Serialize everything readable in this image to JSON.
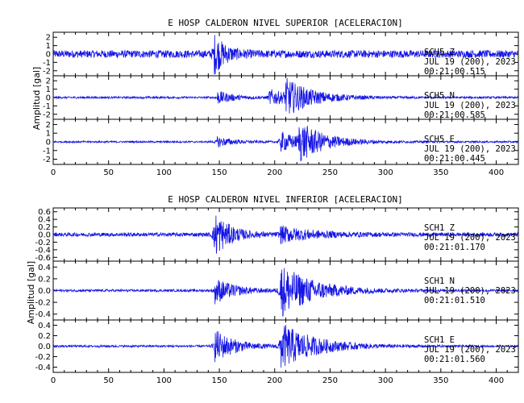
{
  "chart_data": [
    {
      "type": "line",
      "title": "E HOSP CALDERON NIVEL SUPERIOR [ACELERACION]",
      "ylabel": "Amplitud [gal]",
      "xlim": [
        0,
        420
      ],
      "xticks": [
        "0",
        "50",
        "100",
        "150",
        "200",
        "250",
        "300",
        "350",
        "400"
      ],
      "channels": [
        {
          "station": "SCH5",
          "component": "Z",
          "date": "JUL 19 (200), 2023",
          "time": "00:21:00.515",
          "ylim": [
            -2.6,
            2.6
          ],
          "yticks": [
            "-2",
            "-1",
            "0",
            "1",
            "2"
          ],
          "noise_level": 0.45,
          "bursts": [
            {
              "t": 145,
              "amp": 2.3,
              "decay": 10
            }
          ]
        },
        {
          "station": "SCH5",
          "component": "N",
          "date": "JUL 19 (200), 2023",
          "time": "00:21:00.585",
          "ylim": [
            -2.6,
            2.6
          ],
          "yticks": [
            "-2",
            "-1",
            "0",
            "1",
            "2"
          ],
          "noise_level": 0.12,
          "bursts": [
            {
              "t": 148,
              "amp": 0.8,
              "decay": 14
            },
            {
              "t": 195,
              "amp": 1.0,
              "decay": 18
            },
            {
              "t": 210,
              "amp": 1.9,
              "decay": 25
            }
          ]
        },
        {
          "station": "SCH5",
          "component": "E",
          "date": "JUL 19 (200), 2023",
          "time": "00:21:00.445",
          "ylim": [
            -2.6,
            2.6
          ],
          "yticks": [
            "-2",
            "-1",
            "0",
            "1",
            "2"
          ],
          "noise_level": 0.1,
          "bursts": [
            {
              "t": 148,
              "amp": 0.6,
              "decay": 14
            },
            {
              "t": 205,
              "amp": 1.2,
              "decay": 18
            },
            {
              "t": 222,
              "amp": 2.0,
              "decay": 24
            }
          ]
        }
      ]
    },
    {
      "type": "line",
      "title": "E HOSP CALDERON NIVEL INFERIOR [ACELERACION]",
      "ylabel": "Amplitud [gal]",
      "xlim": [
        0,
        420
      ],
      "xticks": [
        "0",
        "50",
        "100",
        "150",
        "200",
        "250",
        "300",
        "350",
        "400"
      ],
      "channels": [
        {
          "station": "SCH1",
          "component": "Z",
          "date": "JUL 19 (200), 2023",
          "time": "00:21:01.170",
          "ylim": [
            -0.7,
            0.7
          ],
          "yticks": [
            "-0.6",
            "-0.4",
            "-0.2",
            "0.0",
            "0.2",
            "0.4",
            "0.6"
          ],
          "noise_level": 0.05,
          "bursts": [
            {
              "t": 145,
              "amp": 0.62,
              "decay": 14
            },
            {
              "t": 205,
              "amp": 0.2,
              "decay": 30
            }
          ]
        },
        {
          "station": "SCH1",
          "component": "N",
          "date": "JUL 19 (200), 2023",
          "time": "00:21:01.510",
          "ylim": [
            -0.5,
            0.5
          ],
          "yticks": [
            "-0.4",
            "-0.2",
            "0.0",
            "0.2",
            "0.4"
          ],
          "noise_level": 0.02,
          "bursts": [
            {
              "t": 146,
              "amp": 0.22,
              "decay": 18
            },
            {
              "t": 205,
              "amp": 0.45,
              "decay": 30
            }
          ]
        },
        {
          "station": "SCH1",
          "component": "E",
          "date": "JUL 19 (200), 2023",
          "time": "00:21:01.560",
          "ylim": [
            -0.5,
            0.5
          ],
          "yticks": [
            "-0.4",
            "-0.2",
            "0.0",
            "0.2",
            "0.4"
          ],
          "noise_level": 0.02,
          "bursts": [
            {
              "t": 146,
              "amp": 0.32,
              "decay": 18
            },
            {
              "t": 205,
              "amp": 0.45,
              "decay": 30
            }
          ]
        }
      ]
    }
  ]
}
